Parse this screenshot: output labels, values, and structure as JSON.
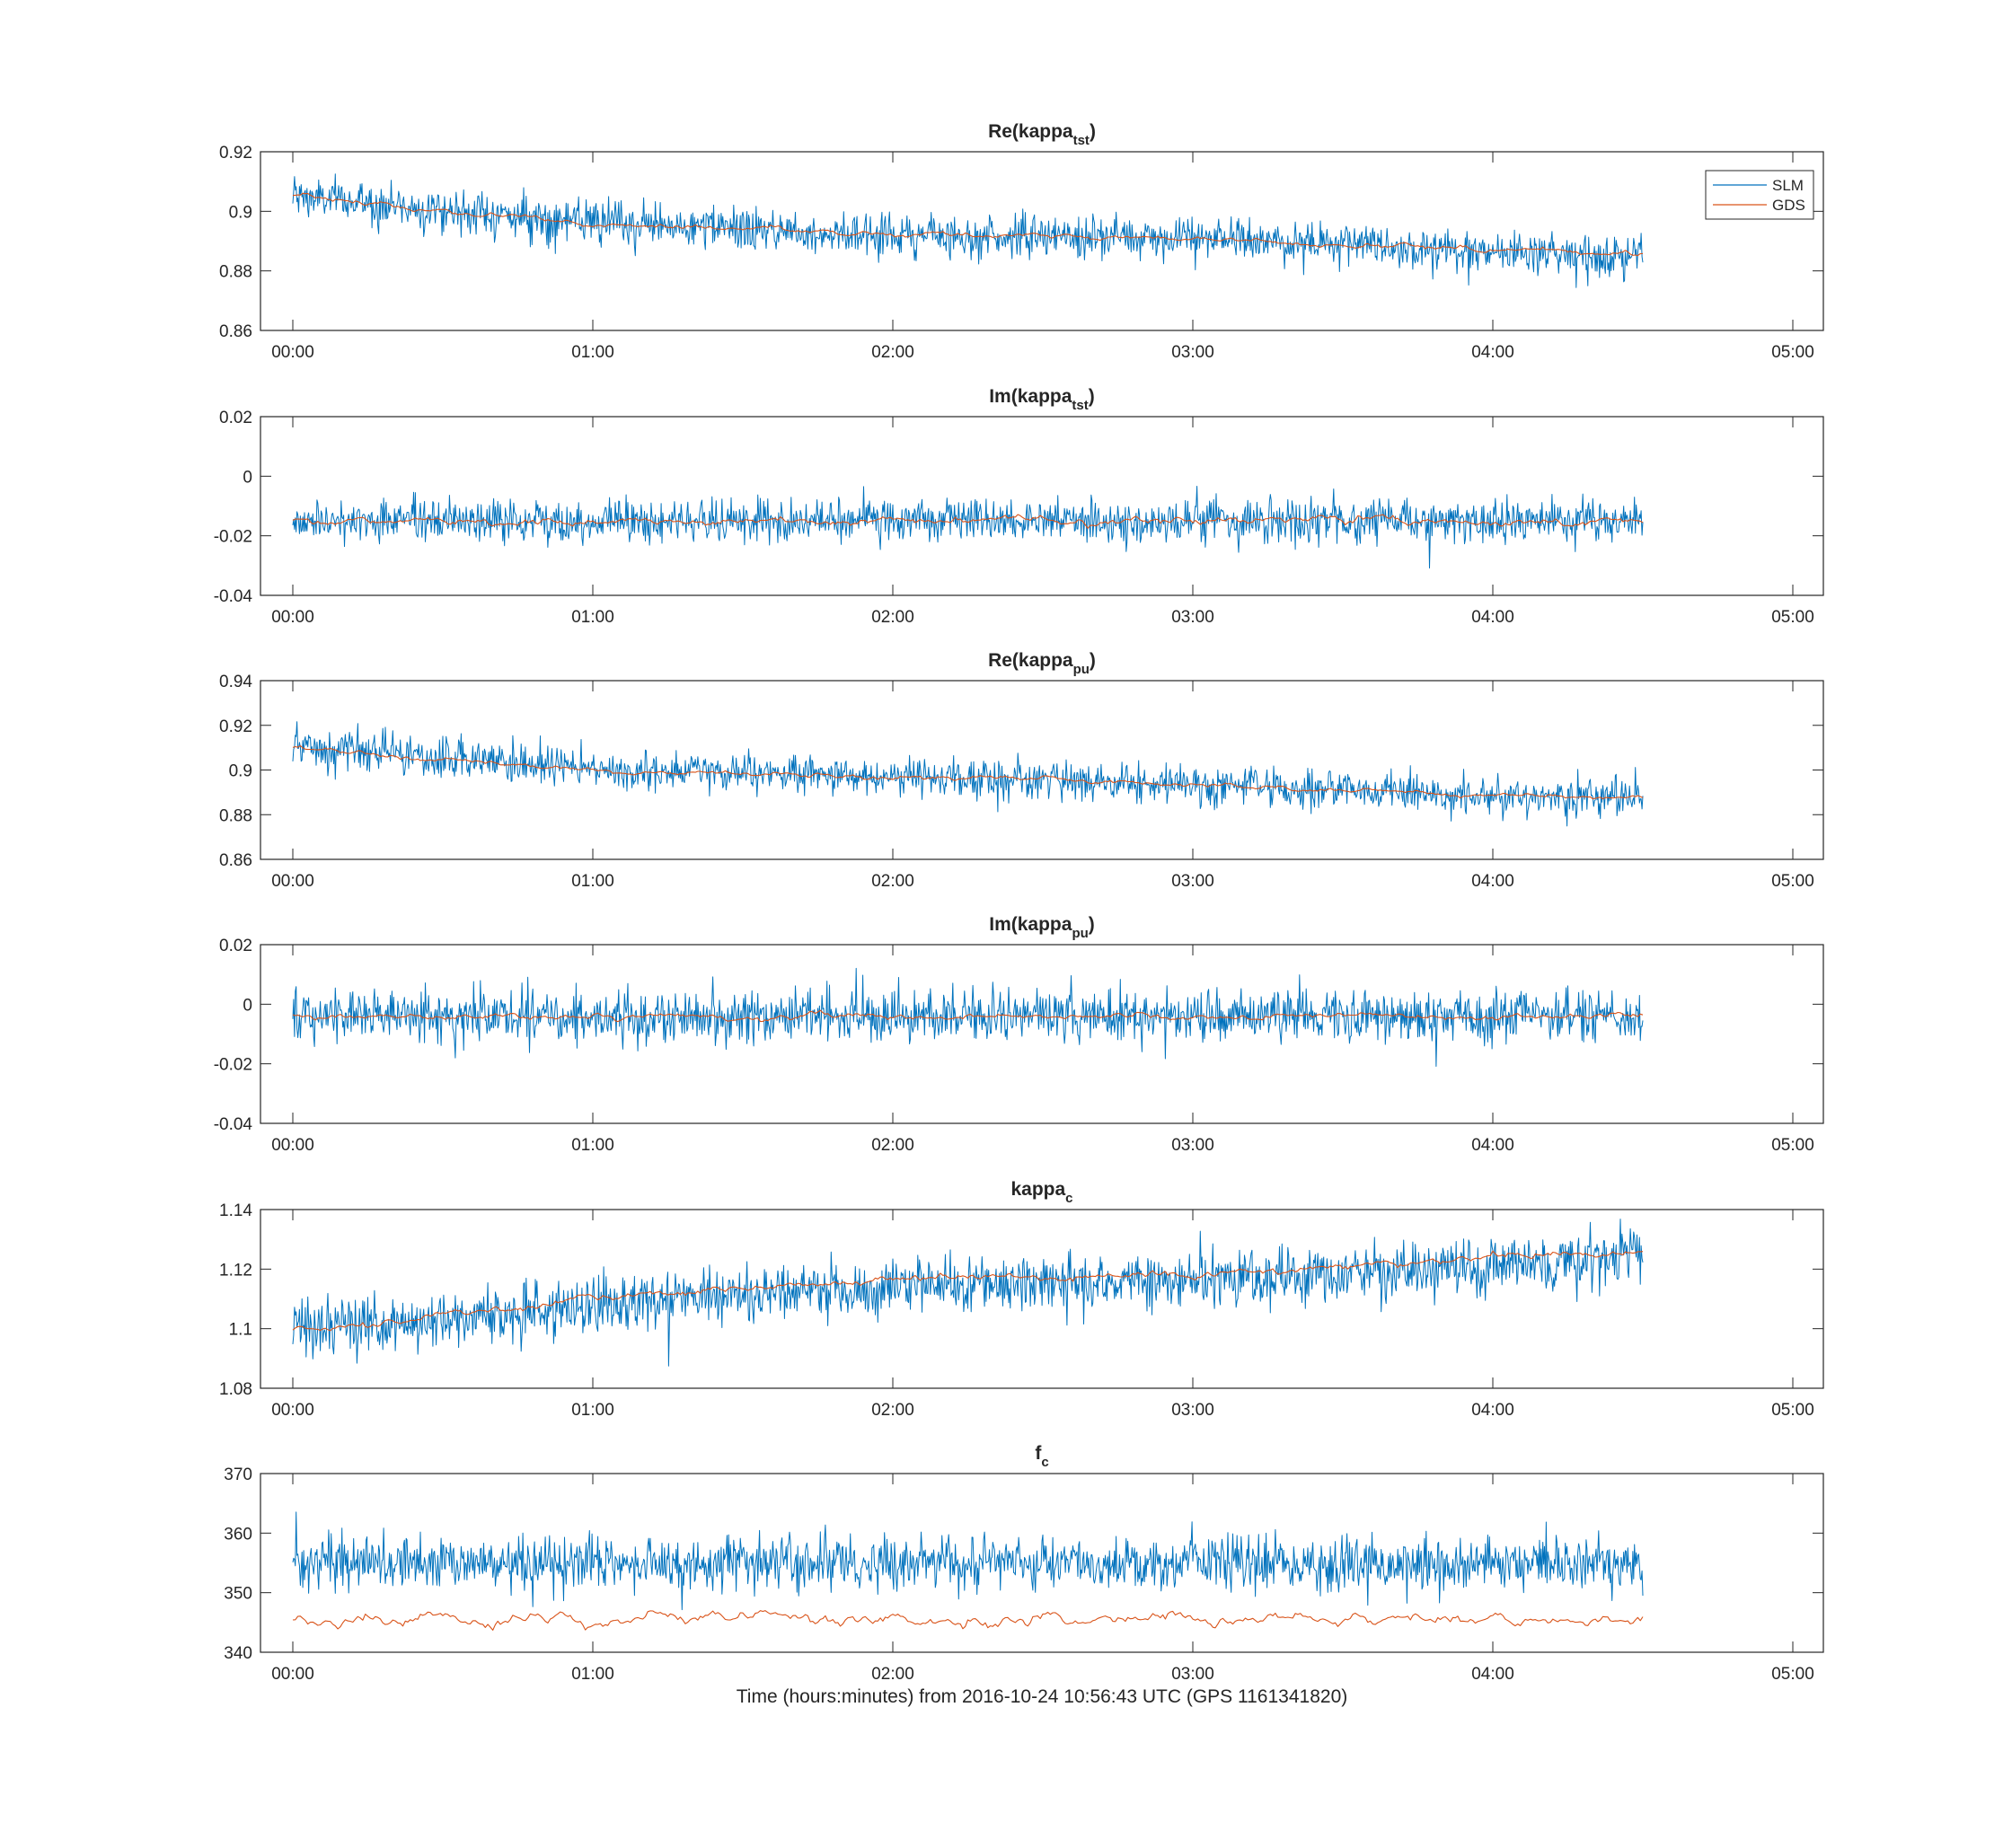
{
  "figure": {
    "xlabel": "Time (hours:minutes) from 2016-10-24 10:56:43 UTC (GPS 1161341820)",
    "legend": [
      {
        "name": "SLM",
        "color": "#0072BD"
      },
      {
        "name": "GDS",
        "color": "#D95319"
      }
    ],
    "colors": {
      "axes": "#262626",
      "background": "#ffffff"
    }
  },
  "chart_data": [
    {
      "type": "line",
      "title": "Re(kappa",
      "title_sub": "tst",
      "title_close": ")",
      "xlabel": "",
      "ylabel": "",
      "xlim": [
        0,
        300
      ],
      "x_unit": "minutes",
      "xticks": [
        "00:00",
        "01:00",
        "02:00",
        "03:00",
        "04:00",
        "05:00"
      ],
      "ylim": [
        0.86,
        0.92
      ],
      "yticks": [
        "0.86",
        "0.88",
        "0.9",
        "0.92"
      ],
      "legend_position": "top-right",
      "series": [
        {
          "name": "SLM",
          "color": "#0072BD",
          "x_range_minutes": [
            0,
            270
          ],
          "trend": [
            [
              0,
              0.905
            ],
            [
              60,
              0.896
            ],
            [
              120,
              0.892
            ],
            [
              180,
              0.891
            ],
            [
              240,
              0.887
            ],
            [
              270,
              0.885
            ]
          ],
          "noise_amplitude": 0.008
        },
        {
          "name": "GDS",
          "color": "#D95319",
          "x_range_minutes": [
            0,
            270
          ],
          "trend": [
            [
              0,
              0.905
            ],
            [
              60,
              0.896
            ],
            [
              120,
              0.892
            ],
            [
              180,
              0.891
            ],
            [
              240,
              0.887
            ],
            [
              270,
              0.885
            ]
          ],
          "noise_amplitude": 0.001
        }
      ]
    },
    {
      "type": "line",
      "title": "Im(kappa",
      "title_sub": "tst",
      "title_close": ")",
      "xlabel": "",
      "ylabel": "",
      "xlim": [
        0,
        300
      ],
      "x_unit": "minutes",
      "xticks": [
        "00:00",
        "01:00",
        "02:00",
        "03:00",
        "04:00",
        "05:00"
      ],
      "ylim": [
        -0.04,
        0.02
      ],
      "yticks": [
        "-0.04",
        "-0.02",
        "0",
        "0.02"
      ],
      "series": [
        {
          "name": "SLM",
          "color": "#0072BD",
          "x_range_minutes": [
            0,
            270
          ],
          "trend": [
            [
              0,
              -0.015
            ],
            [
              270,
              -0.015
            ]
          ],
          "noise_amplitude": 0.008
        },
        {
          "name": "GDS",
          "color": "#D95319",
          "x_range_minutes": [
            0,
            270
          ],
          "trend": [
            [
              0,
              -0.015
            ],
            [
              270,
              -0.015
            ]
          ],
          "noise_amplitude": 0.0015
        }
      ]
    },
    {
      "type": "line",
      "title": "Re(kappa",
      "title_sub": "pu",
      "title_close": ")",
      "xlabel": "",
      "ylabel": "",
      "xlim": [
        0,
        300
      ],
      "x_unit": "minutes",
      "xticks": [
        "00:00",
        "01:00",
        "02:00",
        "03:00",
        "04:00",
        "05:00"
      ],
      "ylim": [
        0.86,
        0.94
      ],
      "yticks": [
        "0.86",
        "0.88",
        "0.9",
        "0.92",
        "0.94"
      ],
      "series": [
        {
          "name": "SLM",
          "color": "#0072BD",
          "x_range_minutes": [
            0,
            270
          ],
          "trend": [
            [
              0,
              0.91
            ],
            [
              60,
              0.9
            ],
            [
              120,
              0.897
            ],
            [
              180,
              0.894
            ],
            [
              240,
              0.888
            ],
            [
              270,
              0.888
            ]
          ],
          "noise_amplitude": 0.01
        },
        {
          "name": "GDS",
          "color": "#D95319",
          "x_range_minutes": [
            0,
            270
          ],
          "trend": [
            [
              0,
              0.91
            ],
            [
              60,
              0.9
            ],
            [
              120,
              0.897
            ],
            [
              180,
              0.894
            ],
            [
              240,
              0.888
            ],
            [
              270,
              0.888
            ]
          ],
          "noise_amplitude": 0.0012
        }
      ]
    },
    {
      "type": "line",
      "title": "Im(kappa",
      "title_sub": "pu",
      "title_close": ")",
      "xlabel": "",
      "ylabel": "",
      "xlim": [
        0,
        300
      ],
      "x_unit": "minutes",
      "xticks": [
        "00:00",
        "01:00",
        "02:00",
        "03:00",
        "04:00",
        "05:00"
      ],
      "ylim": [
        -0.04,
        0.02
      ],
      "yticks": [
        "-0.04",
        "-0.02",
        "0",
        "0.02"
      ],
      "series": [
        {
          "name": "SLM",
          "color": "#0072BD",
          "x_range_minutes": [
            0,
            270
          ],
          "trend": [
            [
              0,
              -0.004
            ],
            [
              270,
              -0.004
            ]
          ],
          "noise_amplitude": 0.01
        },
        {
          "name": "GDS",
          "color": "#D95319",
          "x_range_minutes": [
            0,
            270
          ],
          "trend": [
            [
              0,
              -0.004
            ],
            [
              270,
              -0.004
            ]
          ],
          "noise_amplitude": 0.0012
        }
      ]
    },
    {
      "type": "line",
      "title": "kappa",
      "title_sub": "c",
      "title_close": "",
      "xlabel": "",
      "ylabel": "",
      "xlim": [
        0,
        300
      ],
      "x_unit": "minutes",
      "xticks": [
        "00:00",
        "01:00",
        "02:00",
        "03:00",
        "04:00",
        "05:00"
      ],
      "ylim": [
        1.08,
        1.14
      ],
      "yticks": [
        "1.08",
        "1.1",
        "1.12",
        "1.14"
      ],
      "series": [
        {
          "name": "SLM",
          "color": "#0072BD",
          "x_range_minutes": [
            0,
            270
          ],
          "trend": [
            [
              0,
              1.1
            ],
            [
              30,
              1.103
            ],
            [
              60,
              1.108
            ],
            [
              120,
              1.114
            ],
            [
              180,
              1.116
            ],
            [
              240,
              1.121
            ],
            [
              270,
              1.125
            ]
          ],
          "noise_amplitude": 0.011
        },
        {
          "name": "GDS",
          "color": "#D95319",
          "x_range_minutes": [
            0,
            270
          ],
          "trend": [
            [
              0,
              1.1
            ],
            [
              30,
              1.104
            ],
            [
              60,
              1.11
            ],
            [
              120,
              1.117
            ],
            [
              180,
              1.118
            ],
            [
              240,
              1.124
            ],
            [
              270,
              1.126
            ]
          ],
          "noise_amplitude": 0.0015
        }
      ]
    },
    {
      "type": "line",
      "title": "f",
      "title_sub": "c",
      "title_close": "",
      "xlabel": "Time (hours:minutes) from 2016-10-24 10:56:43 UTC (GPS 1161341820)",
      "ylabel": "",
      "xlim": [
        0,
        300
      ],
      "x_unit": "minutes",
      "xticks": [
        "00:00",
        "01:00",
        "02:00",
        "03:00",
        "04:00",
        "05:00"
      ],
      "ylim": [
        340,
        370
      ],
      "yticks": [
        "340",
        "350",
        "360",
        "370"
      ],
      "series": [
        {
          "name": "SLM",
          "color": "#0072BD",
          "x_range_minutes": [
            0,
            270
          ],
          "trend": [
            [
              0,
              355
            ],
            [
              270,
              355
            ]
          ],
          "noise_amplitude": 5
        },
        {
          "name": "GDS",
          "color": "#D95319",
          "x_range_minutes": [
            0,
            270
          ],
          "trend": [
            [
              0,
              345.5
            ],
            [
              270,
              345.5
            ]
          ],
          "noise_amplitude": 1.2
        }
      ]
    }
  ]
}
